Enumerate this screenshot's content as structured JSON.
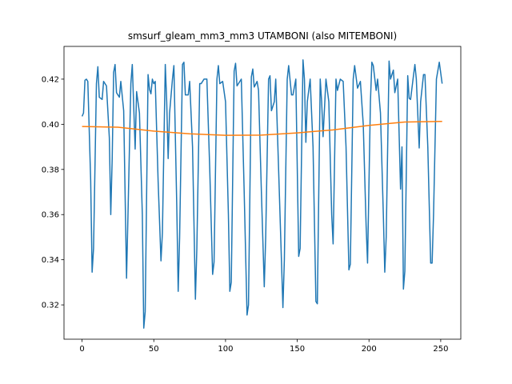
{
  "chart_data": {
    "type": "line",
    "title": "smsurf_gleam_mm3_mm3 UTAMBONI (also MITEMBONI)",
    "xlim": [
      -12.6,
      264
    ],
    "xticks": [
      0,
      50,
      100,
      150,
      200,
      250
    ],
    "ylim": [
      0.3048,
      0.4345
    ],
    "yticks": [
      0.32,
      0.34,
      0.36,
      0.38,
      {
        "value": 0.4,
        "label": "0.40"
      },
      0.42
    ],
    "grid": false,
    "series": [
      {
        "color": "#1f77b4",
        "x": [
          0,
          1,
          2,
          3,
          4,
          6,
          7,
          8,
          10,
          11,
          12,
          14,
          15,
          17,
          19,
          20,
          21,
          22,
          23,
          24,
          26,
          27,
          29,
          31,
          32,
          34,
          35,
          37,
          38,
          40,
          42,
          43,
          44,
          46,
          47,
          48,
          49,
          50,
          51,
          53,
          55,
          56,
          58,
          59,
          60,
          61,
          63,
          64,
          66,
          67,
          68,
          70,
          71,
          72,
          74,
          75,
          77,
          79,
          80,
          82,
          83,
          85,
          87,
          89,
          91,
          92,
          94,
          95,
          96,
          98,
          100,
          102,
          103,
          104,
          106,
          107,
          108,
          110,
          111,
          113,
          115,
          116,
          118,
          119,
          120,
          122,
          123,
          125,
          127,
          128,
          130,
          131,
          132,
          134,
          135,
          137,
          140,
          141,
          143,
          144,
          146,
          147,
          149,
          151,
          152,
          154,
          155,
          156,
          157,
          159,
          161,
          163,
          164,
          166,
          167,
          168,
          170,
          172,
          174,
          175,
          177,
          178,
          180,
          182,
          184,
          186,
          187,
          189,
          190,
          192,
          194,
          196,
          198,
          199,
          201,
          202,
          203,
          205,
          206,
          208,
          210,
          211,
          212,
          214,
          215,
          217,
          218,
          220,
          222,
          223,
          224,
          225,
          227,
          228,
          229,
          231,
          232,
          233,
          235,
          236,
          238,
          239,
          241,
          243,
          244,
          245,
          247,
          249,
          251
        ],
        "values": [
          0.4035,
          0.405,
          0.4195,
          0.42,
          0.419,
          0.375,
          0.3345,
          0.345,
          0.418,
          0.4255,
          0.412,
          0.411,
          0.419,
          0.417,
          0.394,
          0.36,
          0.385,
          0.423,
          0.4265,
          0.414,
          0.412,
          0.419,
          0.406,
          0.3318,
          0.36,
          0.418,
          0.4265,
          0.389,
          0.4145,
          0.405,
          0.36,
          0.3097,
          0.317,
          0.422,
          0.4155,
          0.4135,
          0.42,
          0.418,
          0.419,
          0.375,
          0.3395,
          0.352,
          0.4265,
          0.41,
          0.3848,
          0.405,
          0.42,
          0.426,
          0.364,
          0.326,
          0.35,
          0.4265,
          0.4275,
          0.413,
          0.413,
          0.419,
          0.39,
          0.3225,
          0.345,
          0.418,
          0.418,
          0.42,
          0.42,
          0.38,
          0.3335,
          0.339,
          0.42,
          0.426,
          0.418,
          0.419,
          0.41,
          0.36,
          0.326,
          0.33,
          0.4235,
          0.427,
          0.417,
          0.419,
          0.42,
          0.37,
          0.3155,
          0.32,
          0.421,
          0.4245,
          0.4165,
          0.419,
          0.415,
          0.37,
          0.328,
          0.35,
          0.42,
          0.4215,
          0.406,
          0.41,
          0.42,
          0.38,
          0.3188,
          0.34,
          0.42,
          0.426,
          0.413,
          0.413,
          0.42,
          0.3415,
          0.345,
          0.4285,
          0.42,
          0.392,
          0.41,
          0.42,
          0.39,
          0.3215,
          0.3205,
          0.42,
          0.41,
          0.3945,
          0.42,
          0.41,
          0.36,
          0.347,
          0.42,
          0.415,
          0.42,
          0.419,
          0.39,
          0.3355,
          0.338,
          0.42,
          0.426,
          0.416,
          0.419,
          0.4,
          0.355,
          0.3385,
          0.41,
          0.4275,
          0.426,
          0.415,
          0.42,
          0.405,
          0.36,
          0.3345,
          0.35,
          0.428,
          0.42,
          0.424,
          0.414,
          0.42,
          0.3713,
          0.39,
          0.327,
          0.335,
          0.4215,
          0.4115,
          0.411,
          0.4215,
          0.4265,
          0.42,
          0.3895,
          0.41,
          0.422,
          0.422,
          0.39,
          0.3385,
          0.3385,
          0.36,
          0.42,
          0.4275,
          0.418
        ]
      },
      {
        "color": "#ff7f0e",
        "x": [
          0,
          25,
          50,
          75,
          100,
          125,
          150,
          175,
          200,
          225,
          251
        ],
        "values": [
          0.399,
          0.3987,
          0.397,
          0.3958,
          0.3951,
          0.3952,
          0.3962,
          0.3975,
          0.3995,
          0.401,
          0.4013
        ]
      }
    ]
  }
}
